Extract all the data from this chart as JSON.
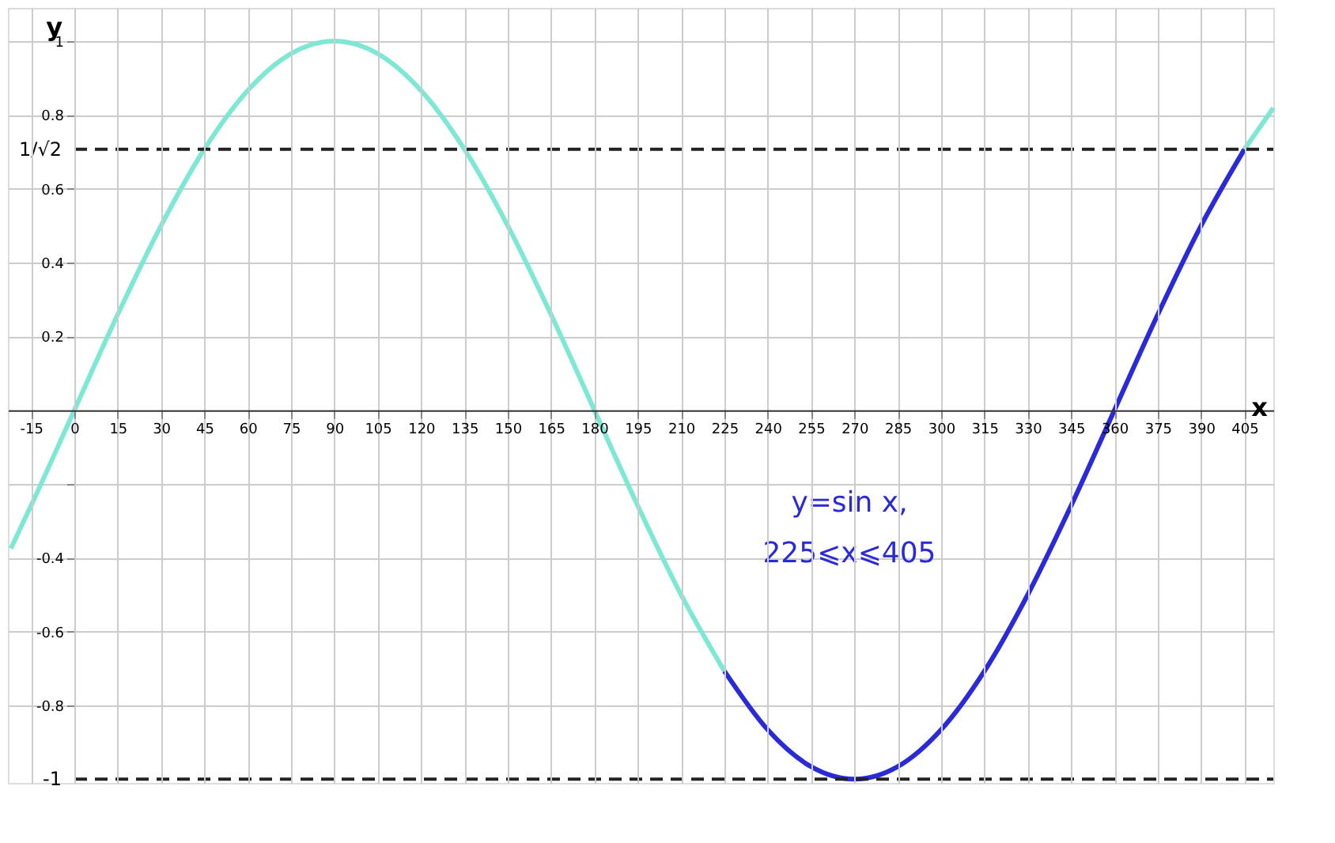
{
  "chart_data": {
    "type": "line",
    "xlabel": "x",
    "ylabel": "y",
    "series": [
      {
        "color": "#7ee8d4",
        "x": [
          -22,
          -15,
          0,
          15,
          30,
          45,
          60,
          75,
          90,
          105,
          120,
          135,
          150,
          165,
          180,
          195,
          210,
          225
        ],
        "values": [
          -0.375,
          -0.259,
          0,
          0.259,
          0.5,
          0.707,
          0.866,
          0.966,
          1,
          0.966,
          0.866,
          0.707,
          0.5,
          0.259,
          0,
          -0.259,
          -0.5,
          -0.707
        ]
      },
      {
        "color": "#2a2ad8",
        "x": [
          225,
          240,
          255,
          270,
          285,
          300,
          315,
          330,
          345,
          360,
          375,
          390,
          405
        ],
        "values": [
          -0.707,
          -0.866,
          -0.966,
          -1,
          -0.966,
          -0.866,
          -0.707,
          -0.5,
          -0.259,
          0,
          0.259,
          0.5,
          0.707
        ]
      },
      {
        "color": "#7ee8d4",
        "x": [
          405,
          415
        ],
        "values": [
          0.707,
          0.819
        ]
      }
    ],
    "xlim": [
      -23,
      415
    ],
    "ylim": [
      -1.01,
      1.09
    ],
    "xticks": [
      -15,
      0,
      15,
      30,
      45,
      60,
      75,
      90,
      105,
      120,
      135,
      150,
      165,
      180,
      195,
      210,
      225,
      240,
      255,
      270,
      285,
      300,
      315,
      330,
      345,
      360,
      375,
      390,
      405
    ],
    "yticks": [
      -0.8,
      -0.6,
      -0.4,
      {
        "value": -0.2,
        "label": null
      },
      0.2,
      0.4,
      0.6,
      0.8,
      1
    ],
    "ref_lines": [
      {
        "axis": "y",
        "value": 0.7071,
        "label": "1/√2",
        "color": "#222222",
        "line_style": "dashed"
      },
      {
        "axis": "y",
        "value": -1,
        "label": "-1",
        "color": "#222222",
        "line_style": "dashed"
      }
    ],
    "annotations": [
      "y=sin x,",
      "225⩽x⩽405"
    ],
    "grid": true,
    "marker": "none",
    "line_style": "solid"
  }
}
